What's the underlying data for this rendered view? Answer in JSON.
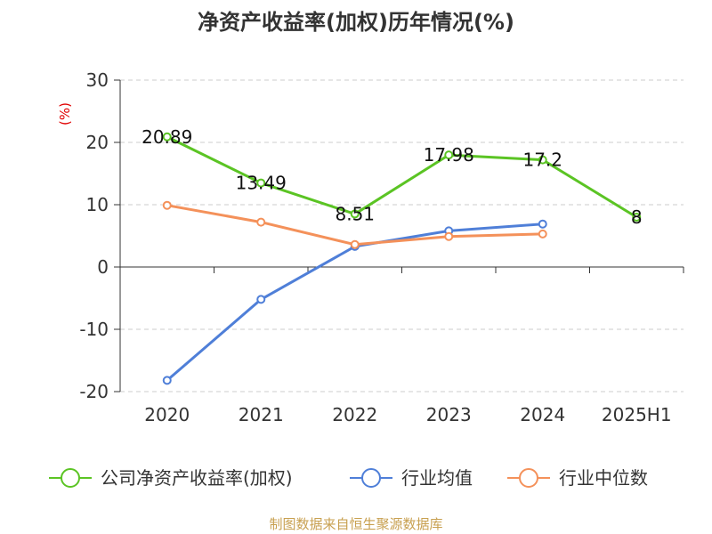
{
  "chart_data": {
    "type": "line",
    "title": "净资产收益率(加权)历年情况(%)",
    "ylabel": "(%)",
    "categories": [
      "2020",
      "2021",
      "2022",
      "2023",
      "2024",
      "2025H1"
    ],
    "ylim": [
      -20,
      30
    ],
    "yticks": [
      30,
      20,
      10,
      0,
      -10,
      -20
    ],
    "grid": true,
    "legend_position": "bottom",
    "series": [
      {
        "name": "公司净资产收益率(加权)",
        "color": "#5bc424",
        "values": [
          20.89,
          13.49,
          8.51,
          17.98,
          17.2,
          8
        ],
        "labels": [
          "20.89",
          "13.49",
          "8.51",
          "17.98",
          "17.2",
          "8"
        ]
      },
      {
        "name": "行业均值",
        "color": "#4f7fd8",
        "values": [
          -18.2,
          -5.2,
          3.3,
          5.8,
          6.9,
          null
        ]
      },
      {
        "name": "行业中位数",
        "color": "#f4915a",
        "values": [
          9.9,
          7.2,
          3.6,
          4.9,
          5.3,
          null
        ]
      }
    ]
  },
  "source": "制图数据来自恒生聚源数据库"
}
